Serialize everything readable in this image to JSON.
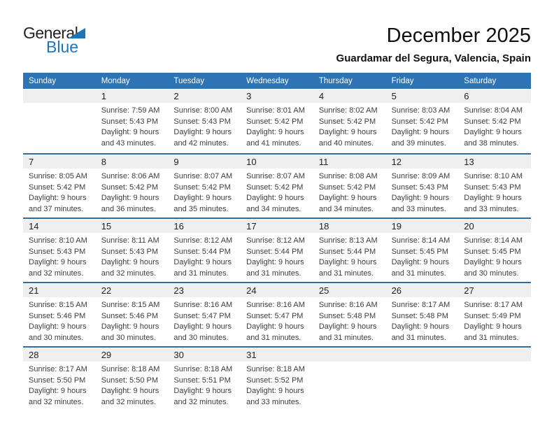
{
  "logo": {
    "general": "General",
    "blue": "Blue"
  },
  "header": {
    "title": "December 2025",
    "subtitle": "Guardamar del Segura, Valencia, Spain"
  },
  "colors": {
    "header_blue": "#2E73B4",
    "divider_blue": "#2A6CA4",
    "band_gray": "#EFEFEF",
    "logo_blue": "#1B75BC"
  },
  "calendar": {
    "day_headers": [
      "Sunday",
      "Monday",
      "Tuesday",
      "Wednesday",
      "Thursday",
      "Friday",
      "Saturday"
    ],
    "weeks": [
      [
        null,
        {
          "day": "1",
          "sunrise": "Sunrise: 7:59 AM",
          "sunset": "Sunset: 5:43 PM",
          "daylight1": "Daylight: 9 hours",
          "daylight2": "and 43 minutes."
        },
        {
          "day": "2",
          "sunrise": "Sunrise: 8:00 AM",
          "sunset": "Sunset: 5:43 PM",
          "daylight1": "Daylight: 9 hours",
          "daylight2": "and 42 minutes."
        },
        {
          "day": "3",
          "sunrise": "Sunrise: 8:01 AM",
          "sunset": "Sunset: 5:42 PM",
          "daylight1": "Daylight: 9 hours",
          "daylight2": "and 41 minutes."
        },
        {
          "day": "4",
          "sunrise": "Sunrise: 8:02 AM",
          "sunset": "Sunset: 5:42 PM",
          "daylight1": "Daylight: 9 hours",
          "daylight2": "and 40 minutes."
        },
        {
          "day": "5",
          "sunrise": "Sunrise: 8:03 AM",
          "sunset": "Sunset: 5:42 PM",
          "daylight1": "Daylight: 9 hours",
          "daylight2": "and 39 minutes."
        },
        {
          "day": "6",
          "sunrise": "Sunrise: 8:04 AM",
          "sunset": "Sunset: 5:42 PM",
          "daylight1": "Daylight: 9 hours",
          "daylight2": "and 38 minutes."
        }
      ],
      [
        {
          "day": "7",
          "sunrise": "Sunrise: 8:05 AM",
          "sunset": "Sunset: 5:42 PM",
          "daylight1": "Daylight: 9 hours",
          "daylight2": "and 37 minutes."
        },
        {
          "day": "8",
          "sunrise": "Sunrise: 8:06 AM",
          "sunset": "Sunset: 5:42 PM",
          "daylight1": "Daylight: 9 hours",
          "daylight2": "and 36 minutes."
        },
        {
          "day": "9",
          "sunrise": "Sunrise: 8:07 AM",
          "sunset": "Sunset: 5:42 PM",
          "daylight1": "Daylight: 9 hours",
          "daylight2": "and 35 minutes."
        },
        {
          "day": "10",
          "sunrise": "Sunrise: 8:07 AM",
          "sunset": "Sunset: 5:42 PM",
          "daylight1": "Daylight: 9 hours",
          "daylight2": "and 34 minutes."
        },
        {
          "day": "11",
          "sunrise": "Sunrise: 8:08 AM",
          "sunset": "Sunset: 5:42 PM",
          "daylight1": "Daylight: 9 hours",
          "daylight2": "and 34 minutes."
        },
        {
          "day": "12",
          "sunrise": "Sunrise: 8:09 AM",
          "sunset": "Sunset: 5:43 PM",
          "daylight1": "Daylight: 9 hours",
          "daylight2": "and 33 minutes."
        },
        {
          "day": "13",
          "sunrise": "Sunrise: 8:10 AM",
          "sunset": "Sunset: 5:43 PM",
          "daylight1": "Daylight: 9 hours",
          "daylight2": "and 33 minutes."
        }
      ],
      [
        {
          "day": "14",
          "sunrise": "Sunrise: 8:10 AM",
          "sunset": "Sunset: 5:43 PM",
          "daylight1": "Daylight: 9 hours",
          "daylight2": "and 32 minutes."
        },
        {
          "day": "15",
          "sunrise": "Sunrise: 8:11 AM",
          "sunset": "Sunset: 5:43 PM",
          "daylight1": "Daylight: 9 hours",
          "daylight2": "and 32 minutes."
        },
        {
          "day": "16",
          "sunrise": "Sunrise: 8:12 AM",
          "sunset": "Sunset: 5:44 PM",
          "daylight1": "Daylight: 9 hours",
          "daylight2": "and 31 minutes."
        },
        {
          "day": "17",
          "sunrise": "Sunrise: 8:12 AM",
          "sunset": "Sunset: 5:44 PM",
          "daylight1": "Daylight: 9 hours",
          "daylight2": "and 31 minutes."
        },
        {
          "day": "18",
          "sunrise": "Sunrise: 8:13 AM",
          "sunset": "Sunset: 5:44 PM",
          "daylight1": "Daylight: 9 hours",
          "daylight2": "and 31 minutes."
        },
        {
          "day": "19",
          "sunrise": "Sunrise: 8:14 AM",
          "sunset": "Sunset: 5:45 PM",
          "daylight1": "Daylight: 9 hours",
          "daylight2": "and 31 minutes."
        },
        {
          "day": "20",
          "sunrise": "Sunrise: 8:14 AM",
          "sunset": "Sunset: 5:45 PM",
          "daylight1": "Daylight: 9 hours",
          "daylight2": "and 30 minutes."
        }
      ],
      [
        {
          "day": "21",
          "sunrise": "Sunrise: 8:15 AM",
          "sunset": "Sunset: 5:46 PM",
          "daylight1": "Daylight: 9 hours",
          "daylight2": "and 30 minutes."
        },
        {
          "day": "22",
          "sunrise": "Sunrise: 8:15 AM",
          "sunset": "Sunset: 5:46 PM",
          "daylight1": "Daylight: 9 hours",
          "daylight2": "and 30 minutes."
        },
        {
          "day": "23",
          "sunrise": "Sunrise: 8:16 AM",
          "sunset": "Sunset: 5:47 PM",
          "daylight1": "Daylight: 9 hours",
          "daylight2": "and 30 minutes."
        },
        {
          "day": "24",
          "sunrise": "Sunrise: 8:16 AM",
          "sunset": "Sunset: 5:47 PM",
          "daylight1": "Daylight: 9 hours",
          "daylight2": "and 31 minutes."
        },
        {
          "day": "25",
          "sunrise": "Sunrise: 8:16 AM",
          "sunset": "Sunset: 5:48 PM",
          "daylight1": "Daylight: 9 hours",
          "daylight2": "and 31 minutes."
        },
        {
          "day": "26",
          "sunrise": "Sunrise: 8:17 AM",
          "sunset": "Sunset: 5:48 PM",
          "daylight1": "Daylight: 9 hours",
          "daylight2": "and 31 minutes."
        },
        {
          "day": "27",
          "sunrise": "Sunrise: 8:17 AM",
          "sunset": "Sunset: 5:49 PM",
          "daylight1": "Daylight: 9 hours",
          "daylight2": "and 31 minutes."
        }
      ],
      [
        {
          "day": "28",
          "sunrise": "Sunrise: 8:17 AM",
          "sunset": "Sunset: 5:50 PM",
          "daylight1": "Daylight: 9 hours",
          "daylight2": "and 32 minutes."
        },
        {
          "day": "29",
          "sunrise": "Sunrise: 8:18 AM",
          "sunset": "Sunset: 5:50 PM",
          "daylight1": "Daylight: 9 hours",
          "daylight2": "and 32 minutes."
        },
        {
          "day": "30",
          "sunrise": "Sunrise: 8:18 AM",
          "sunset": "Sunset: 5:51 PM",
          "daylight1": "Daylight: 9 hours",
          "daylight2": "and 32 minutes."
        },
        {
          "day": "31",
          "sunrise": "Sunrise: 8:18 AM",
          "sunset": "Sunset: 5:52 PM",
          "daylight1": "Daylight: 9 hours",
          "daylight2": "and 33 minutes."
        },
        null,
        null,
        null
      ]
    ]
  }
}
